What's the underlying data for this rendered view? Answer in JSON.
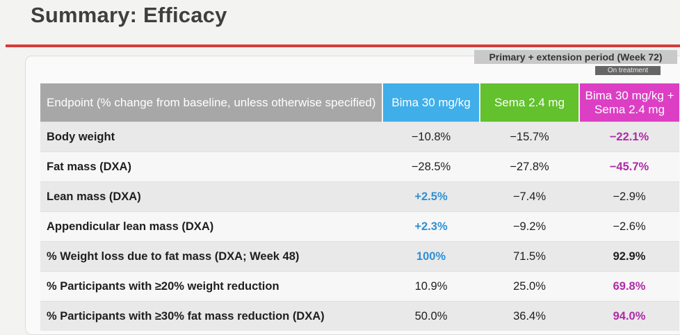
{
  "slide": {
    "title": "Summary: Efficacy",
    "period_label": "Primary + extension period (Week 72)",
    "on_treatment_label": "On treatment"
  },
  "table": {
    "headers": {
      "endpoint": "Endpoint (% change from baseline, unless otherwise specified)",
      "bima": "Bima 30 mg/kg",
      "sema": "Sema 2.4 mg",
      "combo": "Bima 30 mg/kg + Sema 2.4 mg"
    },
    "rows": [
      {
        "label": "Body weight",
        "bima": "−10.8%",
        "sema": "−15.7%",
        "combo": "−22.1%"
      },
      {
        "label": "Fat mass (DXA)",
        "bima": "−28.5%",
        "sema": "−27.8%",
        "combo": "−45.7%"
      },
      {
        "label": "Lean mass (DXA)",
        "bima": "+2.5%",
        "sema": "−7.4%",
        "combo": "−2.9%"
      },
      {
        "label": "Appendicular lean mass (DXA)",
        "bima": "+2.3%",
        "sema": "−9.2%",
        "combo": "−2.6%"
      },
      {
        "label": "% Weight loss due to fat mass (DXA; Week 48)",
        "bima": "100%",
        "sema": "71.5%",
        "combo": "92.9%"
      },
      {
        "label": "% Participants with ≥20% weight reduction",
        "bima": "10.9%",
        "sema": "25.0%",
        "combo": "69.8%"
      },
      {
        "label": "% Participants with ≥30% fat mass reduction (DXA)",
        "bima": "50.0%",
        "sema": "36.4%",
        "combo": "94.0%"
      }
    ]
  },
  "colors": {
    "bima": "#40aee9",
    "sema": "#62c12d",
    "combo": "#dc3fc3",
    "accent_rule": "#d63a3a"
  }
}
